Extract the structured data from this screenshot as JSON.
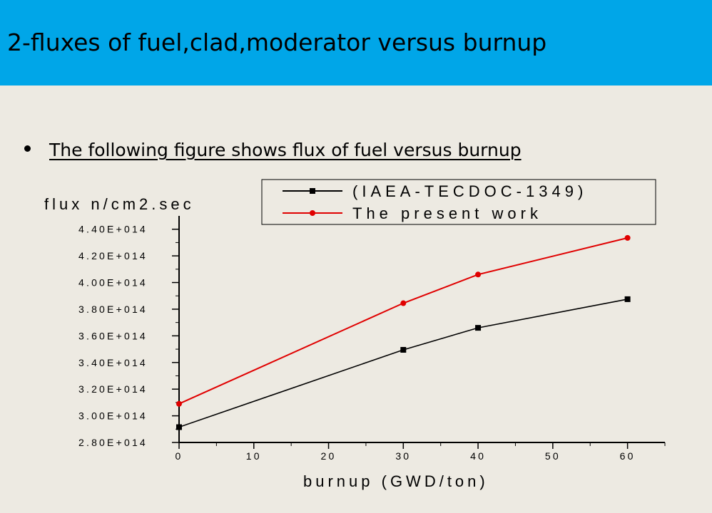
{
  "slide": {
    "title": "2-fluxes of fuel,clad,moderator versus burnup",
    "bullet": "The following figure shows flux of fuel versus burnup"
  },
  "colors": {
    "title_bar": "#00a6e8",
    "background": "#edeae2",
    "series_reference": "#000000",
    "series_present": "#e00000"
  },
  "chart_data": {
    "type": "line",
    "xlabel": "burnup (GWD/ton)",
    "ylabel": "flux n/cm2.sec",
    "xlim": [
      0,
      65
    ],
    "ylim": [
      280000000000000.0,
      450000000000000.0
    ],
    "x_ticks": [
      0,
      10,
      20,
      30,
      40,
      50,
      60
    ],
    "x_tick_labels": [
      "0",
      "10",
      "20",
      "30",
      "40",
      "50",
      "60"
    ],
    "y_ticks": [
      280000000000000.0,
      300000000000000.0,
      320000000000000.0,
      340000000000000.0,
      360000000000000.0,
      380000000000000.0,
      400000000000000.0,
      420000000000000.0,
      440000000000000.0
    ],
    "y_tick_labels": [
      "2.80E+014",
      "3.00E+014",
      "3.20E+014",
      "3.40E+014",
      "3.60E+014",
      "3.80E+014",
      "4.00E+014",
      "4.20E+014",
      "4.40E+014"
    ],
    "legend_position": "top-right",
    "grid": false,
    "series": [
      {
        "name": "(IAEA-TECDOC-1349)",
        "marker": "square",
        "color": "#000000",
        "points": [
          [
            0,
            291500000000000.0
          ],
          [
            30,
            349500000000000.0
          ],
          [
            40,
            366000000000000.0
          ],
          [
            60,
            387500000000000.0
          ]
        ]
      },
      {
        "name": "The present work",
        "marker": "circle",
        "color": "#e00000",
        "points": [
          [
            0,
            309000000000000.0
          ],
          [
            30,
            384500000000000.0
          ],
          [
            40,
            406000000000000.0
          ],
          [
            60,
            433500000000000.0
          ]
        ]
      }
    ]
  }
}
